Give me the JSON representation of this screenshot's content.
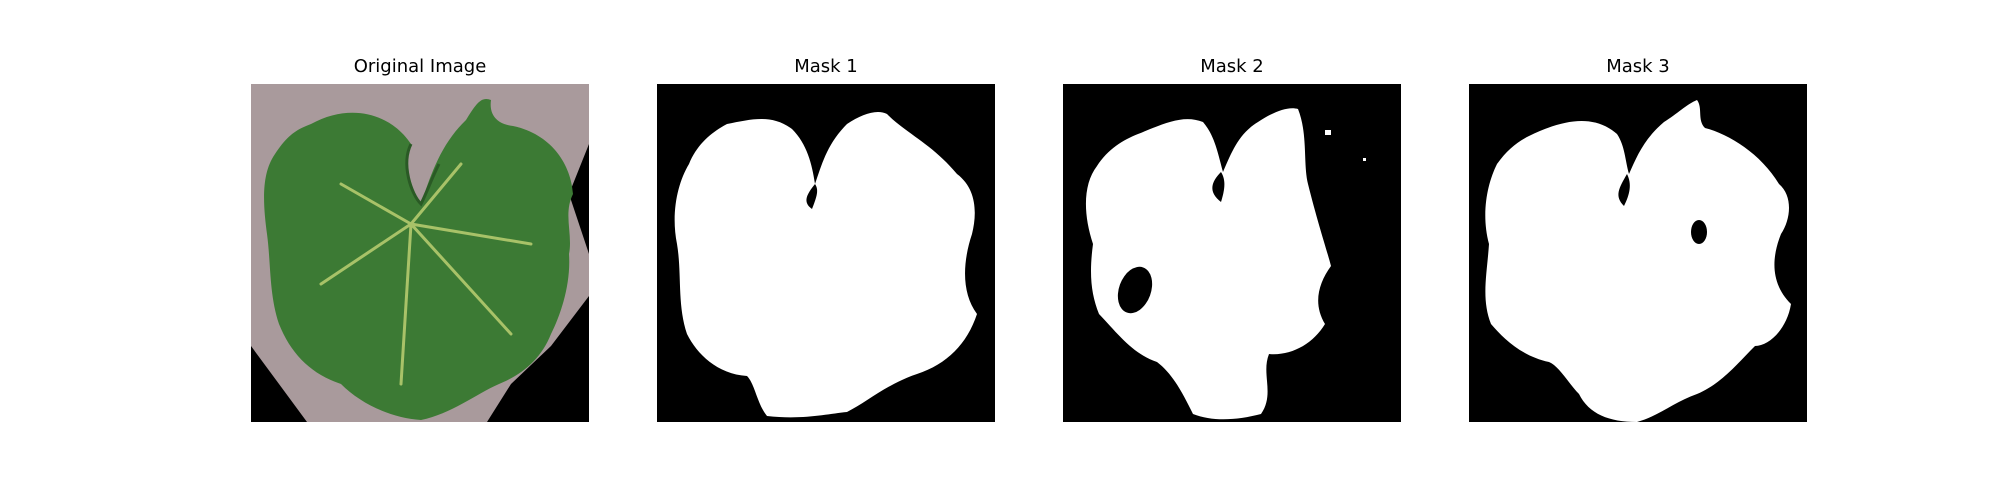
{
  "figure": {
    "panels": [
      {
        "title": "Original Image"
      },
      {
        "title": "Mask 1"
      },
      {
        "title": "Mask 2"
      },
      {
        "title": "Mask 3"
      }
    ]
  },
  "colors": {
    "figure_background": "#ffffff",
    "mask_background": "#000000",
    "mask_foreground": "#ffffff",
    "image_background": "#a99a9c",
    "leaf_green": "#3c7a34",
    "leaf_dark": "#2a5a25",
    "leaf_vein": "#a8c268"
  }
}
